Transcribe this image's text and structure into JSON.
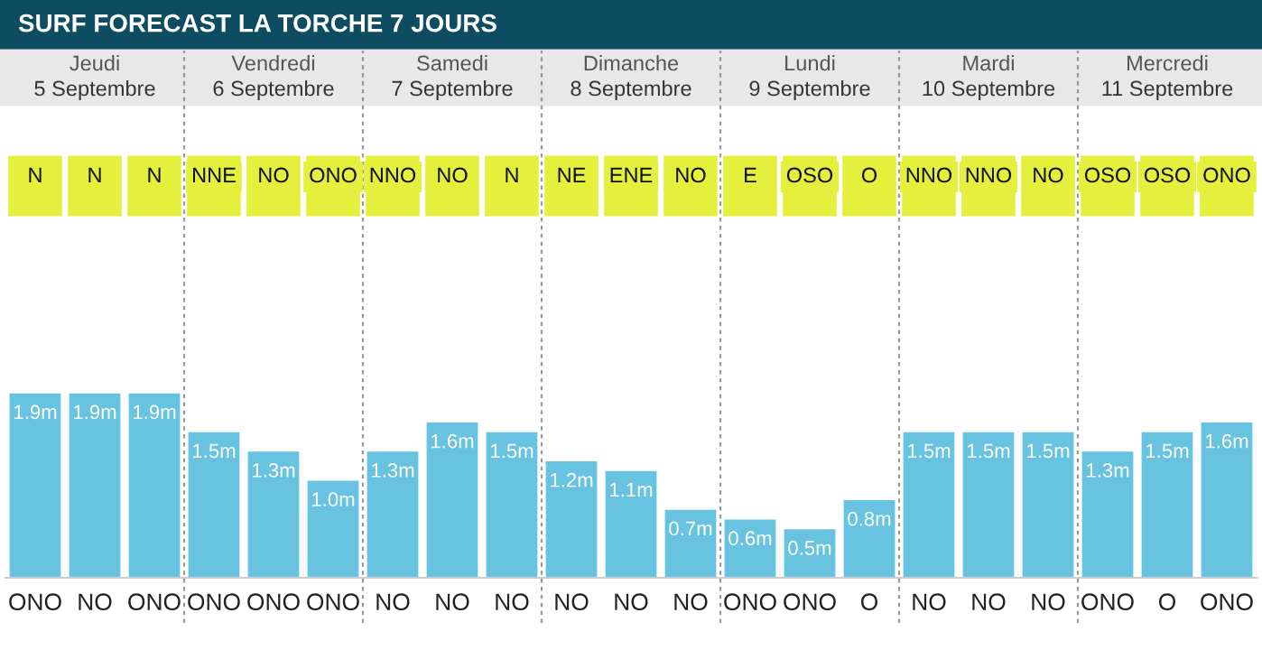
{
  "chart_data": {
    "type": "bar",
    "title": "SURF FORECAST LA TORCHE 7 JOURS",
    "categories": [
      "ONO",
      "NO",
      "ONO",
      "ONO",
      "ONO",
      "ONO",
      "NO",
      "NO",
      "NO",
      "NO",
      "NO",
      "NO",
      "ONO",
      "ONO",
      "O",
      "NO",
      "NO",
      "NO",
      "ONO",
      "O",
      "ONO"
    ],
    "values": [
      1.9,
      1.9,
      1.9,
      1.5,
      1.3,
      1.0,
      1.3,
      1.6,
      1.5,
      1.2,
      1.1,
      0.7,
      0.6,
      0.5,
      0.8,
      1.5,
      1.5,
      1.5,
      1.3,
      1.5,
      1.6
    ],
    "value_labels": [
      "1.9m",
      "1.9m",
      "1.9m",
      "1.5m",
      "1.3m",
      "1.0m",
      "1.3m",
      "1.6m",
      "1.5m",
      "1.2m",
      "1.1m",
      "0.7m",
      "0.6m",
      "0.5m",
      "0.8m",
      "1.5m",
      "1.5m",
      "1.5m",
      "1.3m",
      "1.5m",
      "1.6m"
    ],
    "color": "#67c3df",
    "annotations": [
      "Jeudi",
      "5 Septembre",
      "Vendredi",
      "6 Septembre",
      "Samedi",
      "7 Septembre",
      "Dimanche",
      "8 Septembre",
      "Lundi",
      "9 Septembre",
      "Mardi",
      "10 Septembre",
      "Mercredi",
      "11 Septembre",
      "N",
      "N",
      "N",
      "NNE",
      "NO",
      "ONO",
      "NNO",
      "NO",
      "N",
      "NE",
      "ENE",
      "NO",
      "E",
      "OSO",
      "O",
      "NNO",
      "NNO",
      "NO",
      "OSO",
      "OSO",
      "ONO"
    ]
  }
}
